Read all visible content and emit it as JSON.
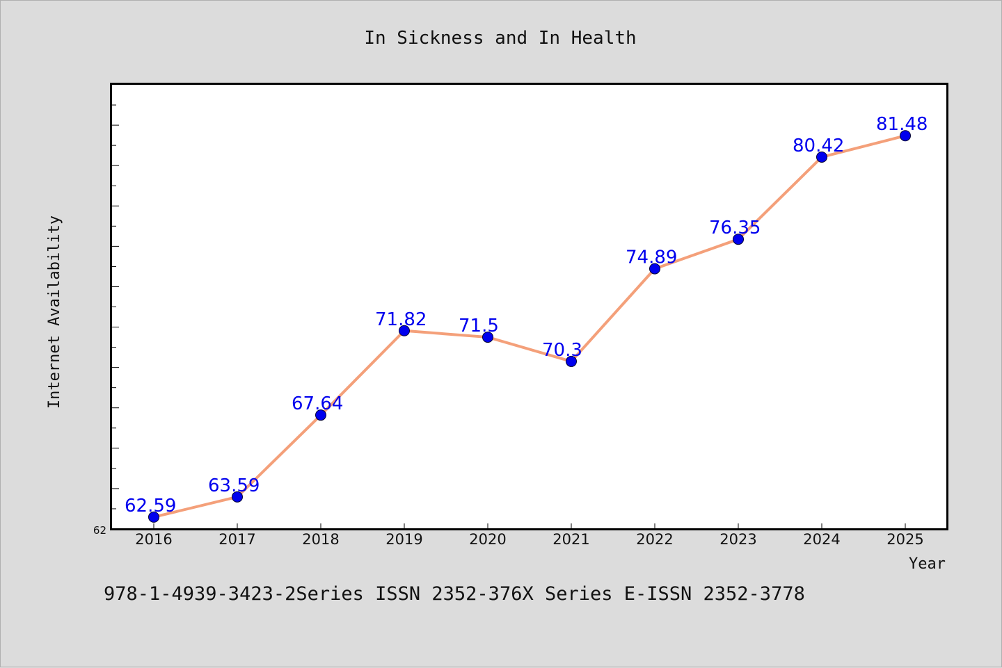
{
  "chart_data": {
    "type": "line",
    "title": "In Sickness and In Health",
    "xlabel": "Year",
    "ylabel": "Internet Availability",
    "categories": [
      "2016",
      "2017",
      "2018",
      "2019",
      "2020",
      "2021",
      "2022",
      "2023",
      "2024",
      "2025"
    ],
    "series": [
      {
        "values": [
          62.59,
          63.59,
          67.64,
          71.82,
          71.5,
          70.3,
          74.89,
          76.35,
          80.42,
          81.48
        ],
        "labels": [
          "62.59",
          "63.59",
          "67.64",
          "71.82",
          "71.5",
          "70.3",
          "74.89",
          "76.35",
          "80.42",
          "81.48"
        ]
      }
    ],
    "ylim": [
      62,
      84
    ],
    "yticks_labeled": [
      "62"
    ],
    "grid": false,
    "line_color": "#f4a07a",
    "marker_color": "#0000ee",
    "label_color": "#0000ee"
  },
  "footer_text": "978-1-4939-3423-2Series ISSN 2352-376X Series E-ISSN 2352-3778"
}
